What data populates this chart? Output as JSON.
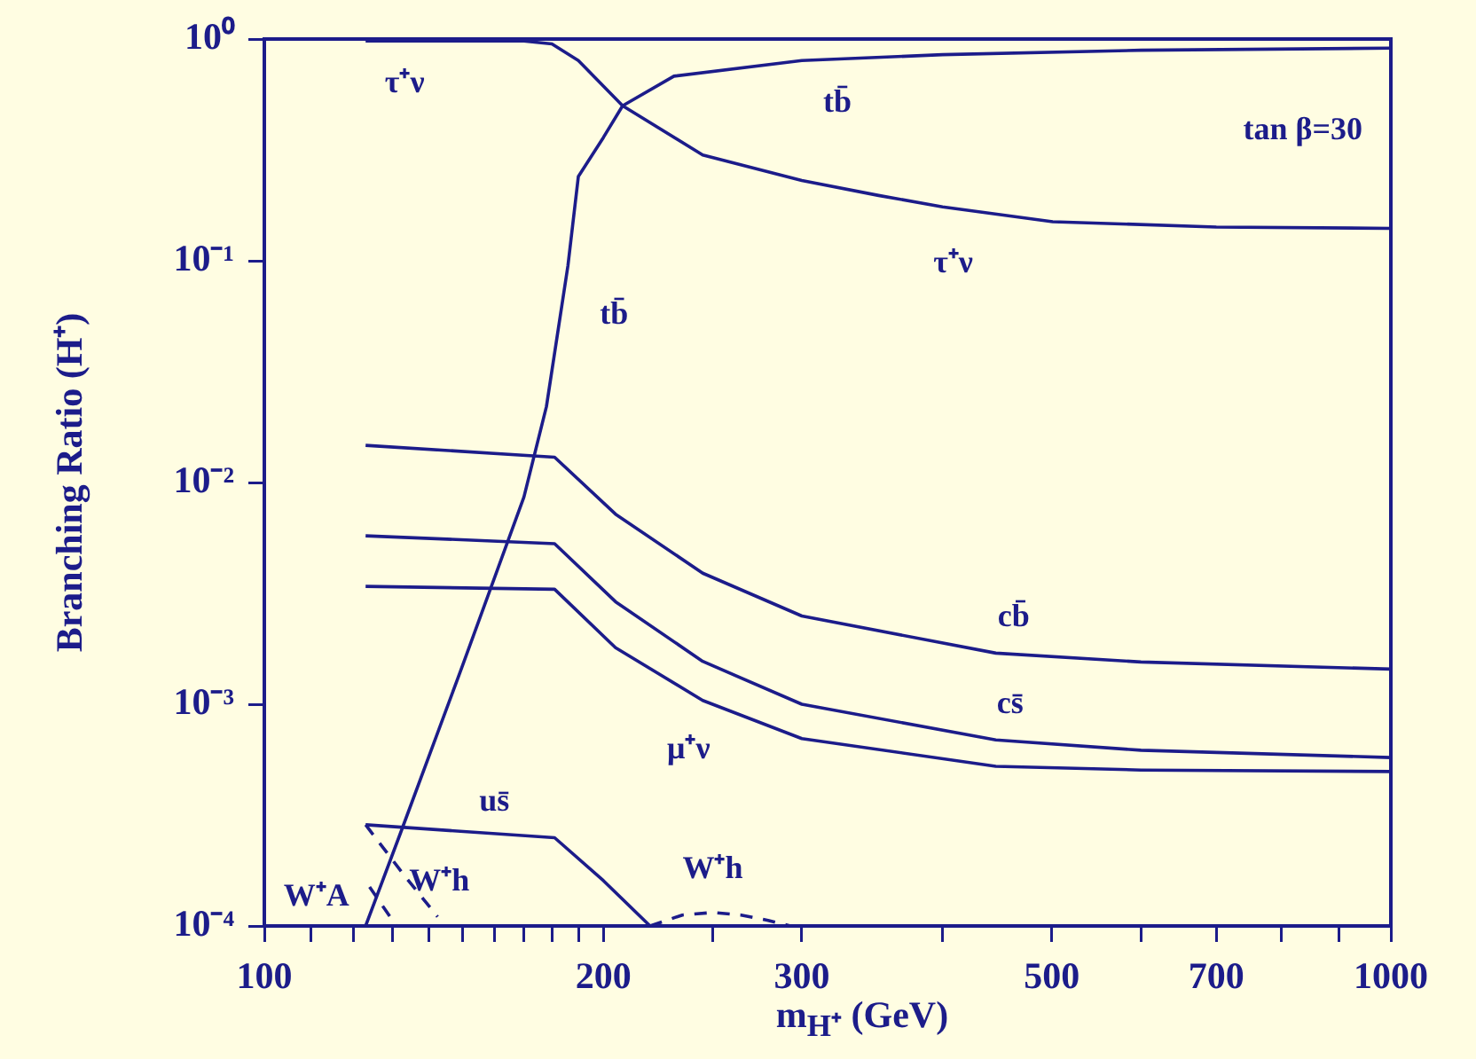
{
  "chart_data": {
    "type": "line",
    "xlabel": "m$_{H⁺}$  (GeV)",
    "ylabel": "Branching Ratio (H⁺)",
    "log": "xy",
    "marker": "none",
    "grid": false,
    "legend": false,
    "xlim": [
      100,
      1000
    ],
    "ylim": [
      0.0001,
      1
    ],
    "xticks": [
      100,
      {
        "value": 110,
        "label": null
      },
      {
        "value": 120,
        "label": null
      },
      {
        "value": 130,
        "label": null
      },
      {
        "value": 140,
        "label": null
      },
      {
        "value": 150,
        "label": null
      },
      {
        "value": 160,
        "label": null
      },
      {
        "value": 170,
        "label": null
      },
      {
        "value": 180,
        "label": null
      },
      {
        "value": 190,
        "label": null
      },
      200,
      {
        "value": 250,
        "label": null
      },
      300,
      {
        "value": 400,
        "label": null
      },
      500,
      {
        "value": 600,
        "label": null
      },
      700,
      {
        "value": 800,
        "label": null
      },
      {
        "value": 900,
        "label": null
      },
      1000
    ],
    "yticks": [
      {
        "value": 0.0001,
        "label": "10⁻⁴"
      },
      {
        "value": 0.001,
        "label": "10⁻³"
      },
      {
        "value": 0.01,
        "label": "10⁻²"
      },
      {
        "value": 0.1,
        "label": "10⁻¹"
      },
      {
        "value": 1,
        "label": "10⁰"
      }
    ],
    "series": [
      {
        "name": "τ⁺ν",
        "color": "#1c1c8a",
        "line_style": "solid",
        "x": [
          123,
          170,
          180,
          190,
          208,
          245,
          300,
          351,
          400,
          501,
          700,
          1000
        ],
        "values": [
          0.98,
          0.98,
          0.95,
          0.8,
          0.5,
          0.3,
          0.23,
          0.197,
          0.175,
          0.15,
          0.142,
          0.14
        ]
      },
      {
        "name": "tb̄",
        "color": "#1c1c8a",
        "line_style": "solid",
        "x": [
          123,
          132,
          150,
          170,
          178,
          186,
          190,
          200,
          208,
          231,
          300,
          400,
          600,
          1000
        ],
        "values": [
          0.0001,
          0.00026,
          0.0015,
          0.0086,
          0.022,
          0.095,
          0.24,
          0.36,
          0.5,
          0.68,
          0.8,
          0.85,
          0.89,
          0.91
        ]
      },
      {
        "name": "cb̄",
        "color": "#1c1c8a",
        "line_style": "solid",
        "x": [
          123,
          181,
          205,
          245,
          300,
          446,
          600,
          1000
        ],
        "values": [
          0.0147,
          0.013,
          0.0072,
          0.0039,
          0.0025,
          0.0017,
          0.00155,
          0.00144
        ]
      },
      {
        "name": "cs̄",
        "color": "#1c1c8a",
        "line_style": "solid",
        "x": [
          123,
          181,
          205,
          245,
          300,
          446,
          600,
          1000
        ],
        "values": [
          0.00575,
          0.0053,
          0.0029,
          0.00156,
          0.001,
          0.00069,
          0.00062,
          0.000575
        ]
      },
      {
        "name": "μ⁺ν",
        "color": "#1c1c8a",
        "line_style": "solid",
        "x": [
          123,
          181,
          205,
          245,
          300,
          446,
          600,
          1000
        ],
        "values": [
          0.0034,
          0.0033,
          0.0018,
          0.00104,
          0.0007,
          0.000525,
          0.000505,
          0.000497
        ]
      },
      {
        "name": "us̄",
        "color": "#1c1c8a",
        "line_style": "solid",
        "x": [
          123,
          181,
          200,
          220
        ],
        "values": [
          0.000286,
          0.00025,
          0.00016,
          0.0001
        ]
      },
      {
        "name": "W⁺h",
        "color": "#1c1c8a",
        "line_style": "dashed",
        "x": [
          123,
          133,
          142.5
        ],
        "values": [
          0.000286,
          0.00017,
          0.00011
        ]
      },
      {
        "name": "W⁺A",
        "color": "#1c1c8a",
        "line_style": "dashed",
        "x": [
          124,
          131
        ],
        "values": [
          0.00015,
          0.0001
        ]
      },
      {
        "name": "W⁺h",
        "color": "#1c1c8a",
        "line_style": "dashed",
        "x": [
          220,
          235,
          250,
          265,
          280,
          293
        ],
        "values": [
          0.0001,
          0.000112,
          0.000115,
          0.000112,
          0.000106,
          0.0001
        ]
      }
    ],
    "annotations": [
      "tan β=30"
    ]
  }
}
